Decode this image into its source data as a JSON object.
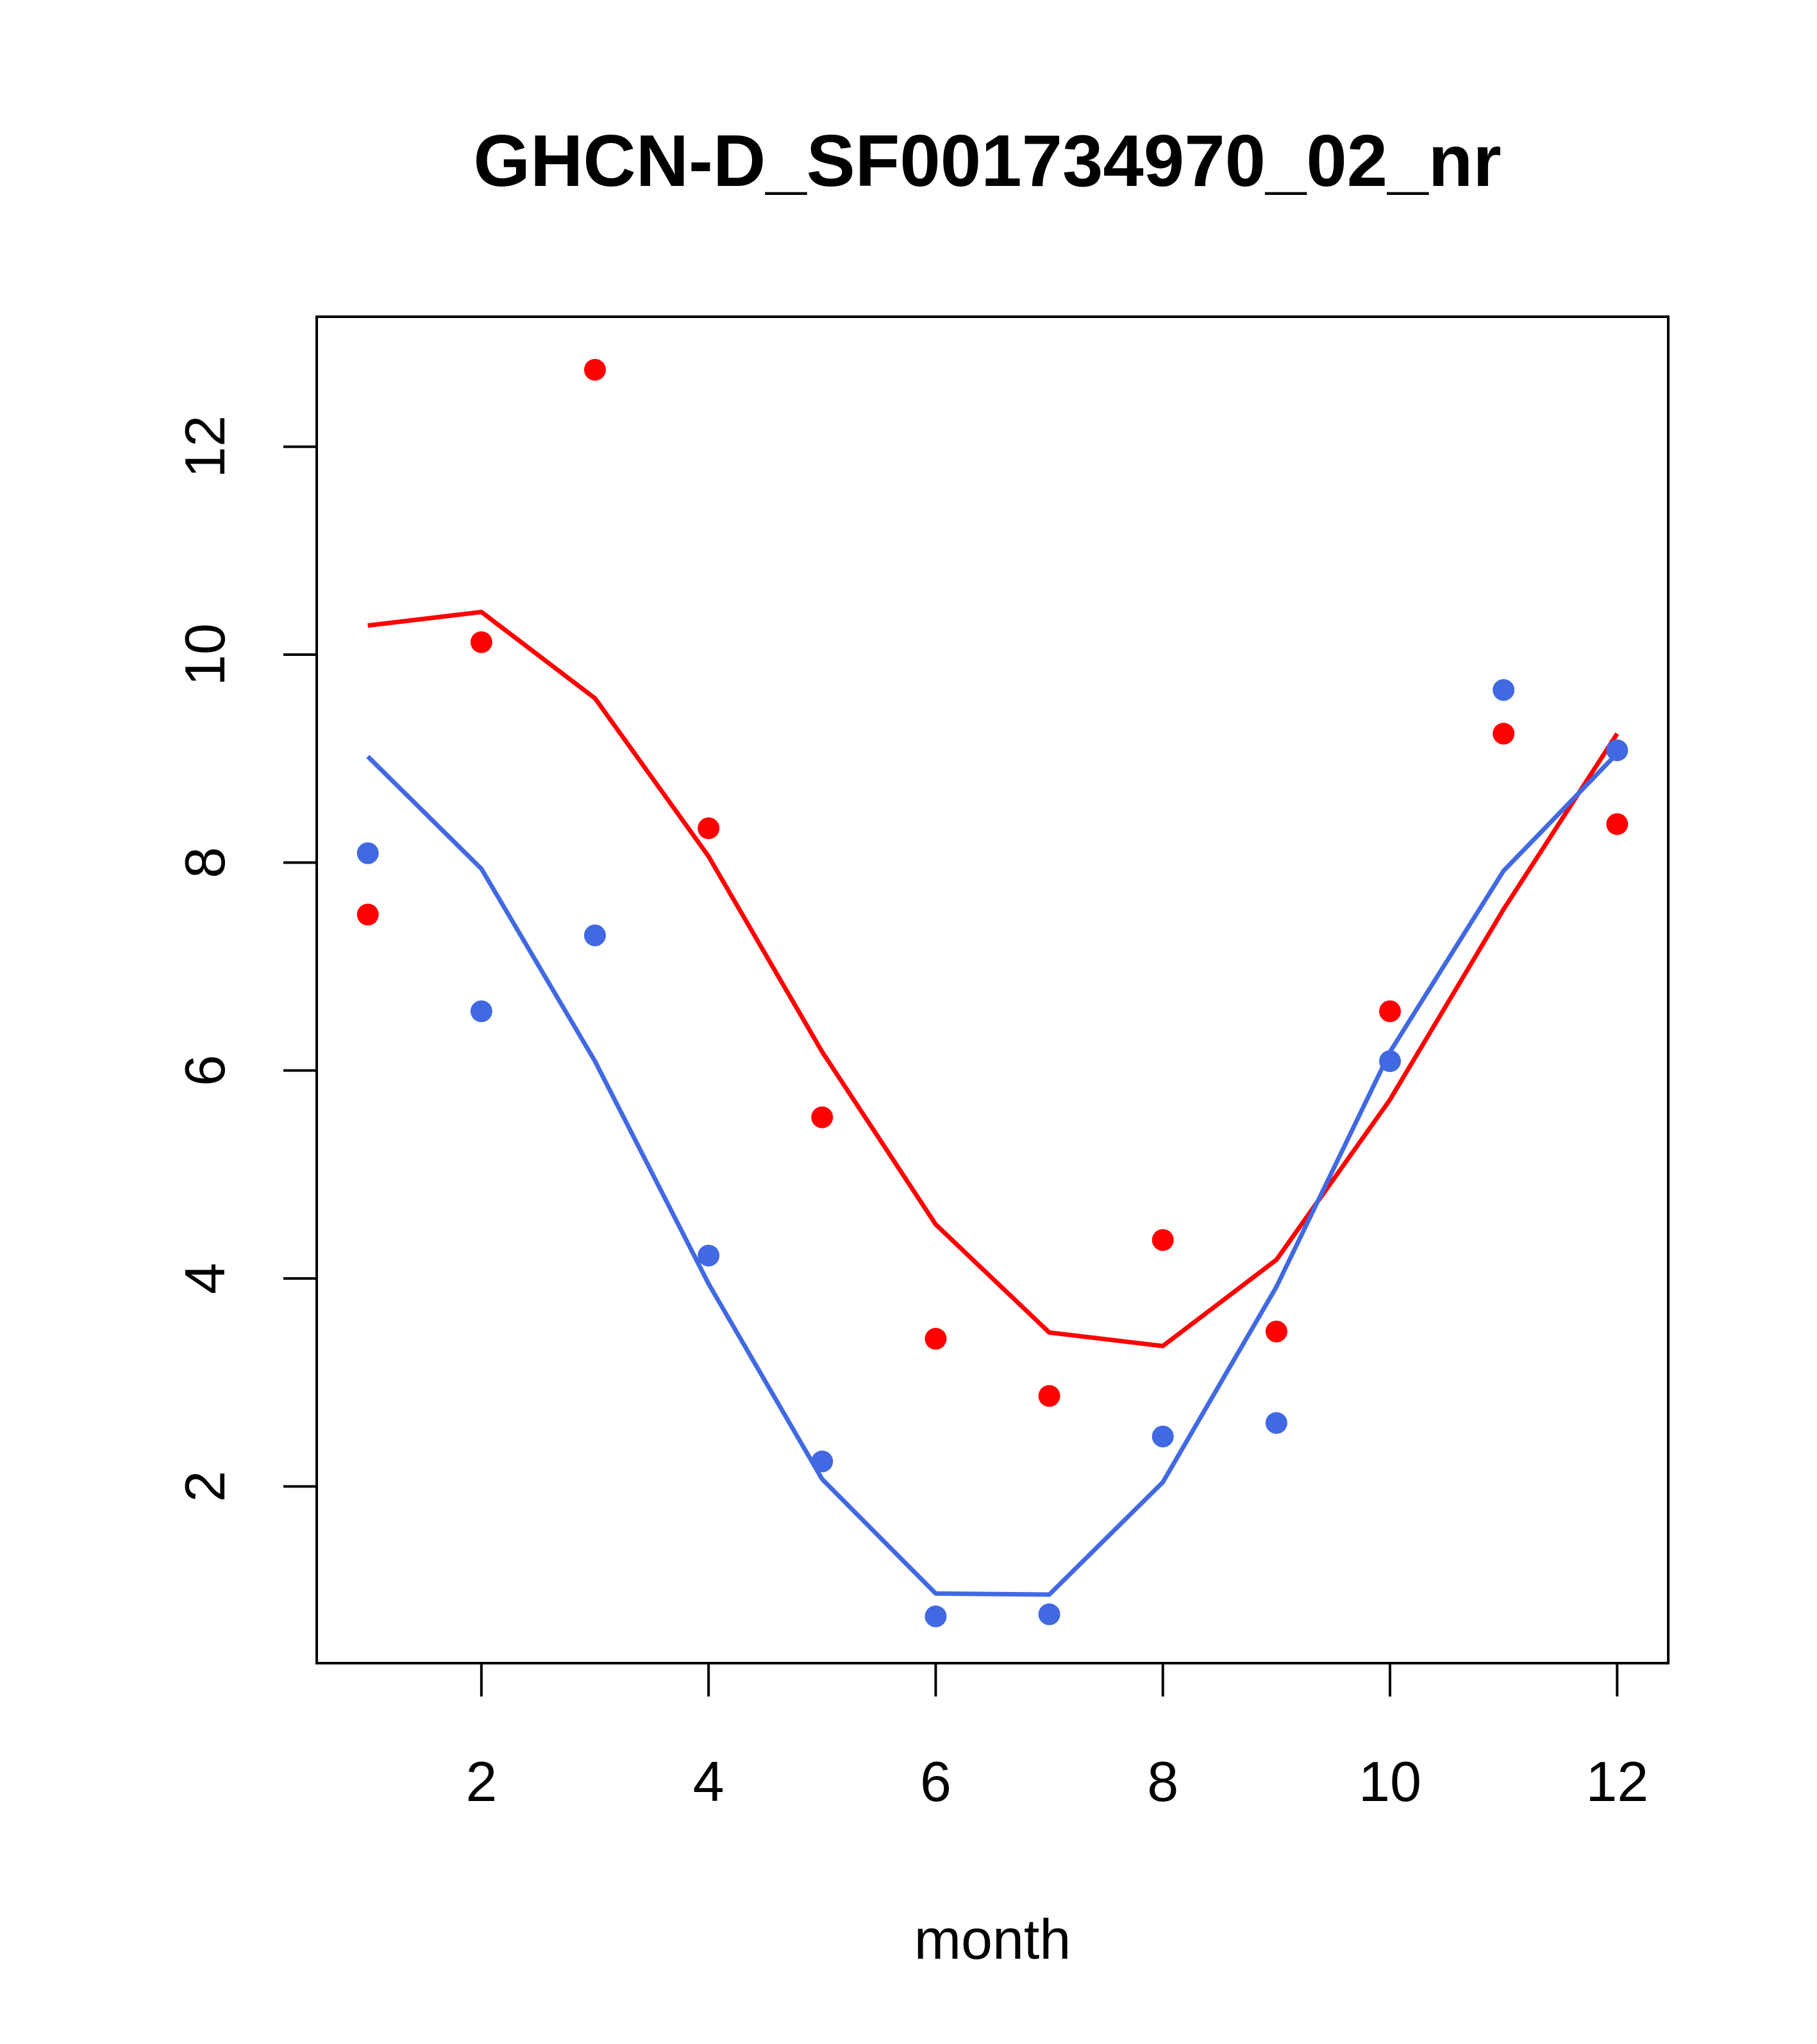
{
  "chart_data": {
    "type": "scatter",
    "title": "GHCN-D_SF001734970_02_nr",
    "xlabel": "month",
    "ylabel": "",
    "xlim": [
      0.55,
      12.45
    ],
    "ylim": [
      0.3,
      13.25
    ],
    "x_ticks": [
      2,
      4,
      6,
      8,
      10,
      12
    ],
    "y_ticks": [
      2,
      4,
      6,
      8,
      10,
      12
    ],
    "grid": false,
    "legend": "none",
    "series": [
      {
        "color": "#ff0000",
        "x": [
          1,
          2,
          3,
          4,
          5,
          6,
          7,
          8,
          9,
          10,
          11,
          12
        ],
        "points": [
          7.5,
          10.12,
          12.74,
          8.33,
          5.55,
          3.42,
          2.87,
          4.37,
          3.49,
          6.57,
          9.24,
          8.37
        ],
        "line": [
          10.28,
          10.41,
          9.58,
          8.06,
          6.18,
          4.52,
          3.48,
          3.35,
          4.18,
          5.72,
          7.55,
          9.24
        ]
      },
      {
        "color": "#4169e1",
        "x": [
          1,
          2,
          3,
          4,
          5,
          6,
          7,
          8,
          9,
          10,
          11,
          12
        ],
        "points": [
          8.09,
          6.57,
          7.3,
          4.22,
          2.24,
          0.75,
          0.77,
          2.48,
          2.61,
          6.09,
          9.66,
          9.08
        ],
        "line": [
          9.02,
          7.94,
          6.09,
          3.95,
          2.07,
          0.97,
          0.96,
          2.04,
          3.92,
          6.18,
          7.92,
          9.05
        ]
      }
    ]
  }
}
